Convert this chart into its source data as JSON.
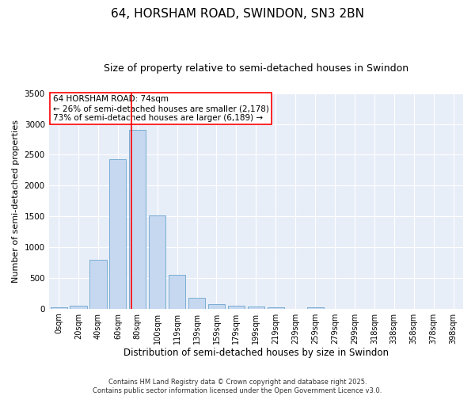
{
  "title": "64, HORSHAM ROAD, SWINDON, SN3 2BN",
  "subtitle": "Size of property relative to semi-detached houses in Swindon",
  "xlabel": "Distribution of semi-detached houses by size in Swindon",
  "ylabel": "Number of semi-detached properties",
  "bar_labels": [
    "0sqm",
    "20sqm",
    "40sqm",
    "60sqm",
    "80sqm",
    "100sqm",
    "119sqm",
    "139sqm",
    "159sqm",
    "179sqm",
    "199sqm",
    "219sqm",
    "239sqm",
    "259sqm",
    "279sqm",
    "299sqm",
    "318sqm",
    "338sqm",
    "358sqm",
    "378sqm",
    "398sqm"
  ],
  "bar_values": [
    25,
    50,
    790,
    2430,
    2900,
    1510,
    545,
    175,
    75,
    50,
    35,
    25,
    0,
    25,
    0,
    0,
    0,
    0,
    0,
    0,
    0
  ],
  "bar_color": "#c5d8f0",
  "bar_edge_color": "#7aaed4",
  "ylim": [
    0,
    3500
  ],
  "yticks": [
    0,
    500,
    1000,
    1500,
    2000,
    2500,
    3000,
    3500
  ],
  "red_line_x": 3.7,
  "annotation_title": "64 HORSHAM ROAD: 74sqm",
  "annotation_line1": "← 26% of semi-detached houses are smaller (2,178)",
  "annotation_line2": "73% of semi-detached houses are larger (6,189) →",
  "footer_line1": "Contains HM Land Registry data © Crown copyright and database right 2025.",
  "footer_line2": "Contains public sector information licensed under the Open Government Licence v3.0.",
  "fig_bg_color": "#ffffff",
  "plot_bg_color": "#e8eef8",
  "grid_color": "#ffffff",
  "title_fontsize": 11,
  "subtitle_fontsize": 9,
  "annotation_fontsize": 7.5,
  "footer_fontsize": 6,
  "ylabel_fontsize": 8,
  "xlabel_fontsize": 8.5
}
